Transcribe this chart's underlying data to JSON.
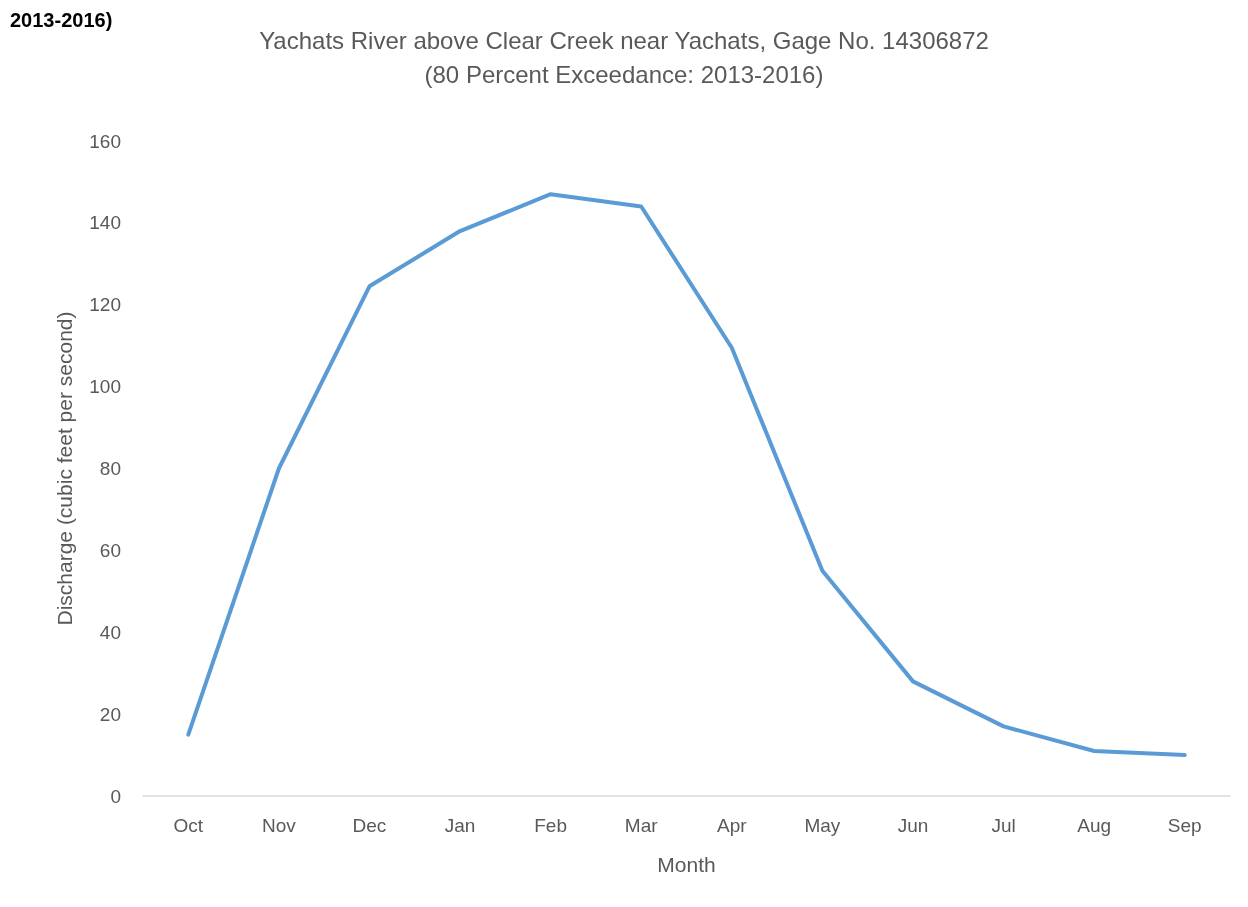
{
  "chart_data": {
    "type": "line",
    "title": "Yachats River above Clear Creek near Yachats, Gage No. 14306872\n(80 Percent Exceedance: 2013-2016)",
    "xlabel": "Month",
    "ylabel": "Discharge (cubic feet per second)",
    "annotations": [
      "2013-2016)"
    ],
    "categories": [
      "Oct",
      "Nov",
      "Dec",
      "Jan",
      "Feb",
      "Mar",
      "Apr",
      "May",
      "Jun",
      "Jul",
      "Aug",
      "Sep"
    ],
    "series": [
      {
        "color": "#5b9bd5",
        "values": [
          15,
          80,
          124.5,
          138,
          147,
          144,
          109.5,
          55,
          28,
          17,
          11,
          10
        ]
      }
    ],
    "ylim": [
      0,
      160
    ],
    "yticks": [
      0,
      20,
      40,
      60,
      80,
      100,
      120,
      140,
      160
    ],
    "marker": "none",
    "line_style": "solid"
  }
}
